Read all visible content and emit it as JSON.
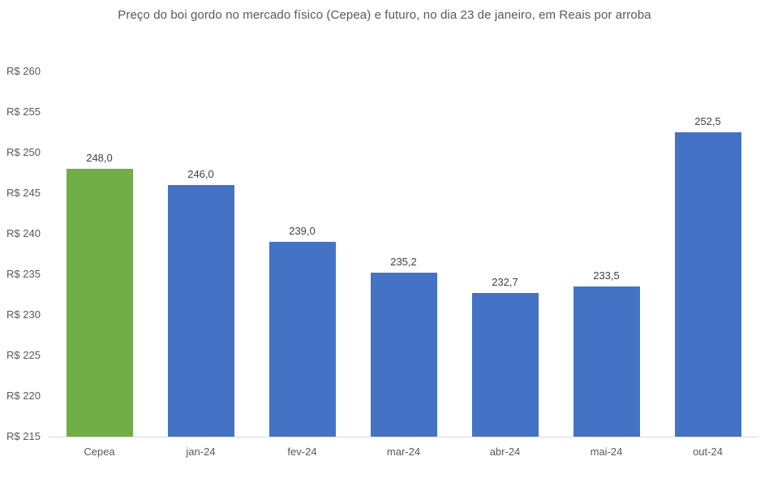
{
  "chart_data": {
    "type": "bar",
    "title": "Preço do boi gordo no mercado físico (Cepea) e futuro, no dia 23 de janeiro, em Reais por arroba",
    "categories": [
      "Cepea",
      "jan-24",
      "fev-24",
      "mar-24",
      "abr-24",
      "mai-24",
      "out-24"
    ],
    "values": [
      248.0,
      246.0,
      239.0,
      235.2,
      232.7,
      233.5,
      252.5
    ],
    "value_labels": [
      "248,0",
      "246,0",
      "239,0",
      "235,2",
      "232,7",
      "233,5",
      "252,5"
    ],
    "bar_colors": [
      "#70ad47",
      "#4472c4",
      "#4472c4",
      "#4472c4",
      "#4472c4",
      "#4472c4",
      "#4472c4"
    ],
    "xlabel": "",
    "ylabel": "",
    "ylim": [
      215,
      260
    ],
    "ytick_step": 5,
    "ytick_labels": [
      "R$ 215",
      "R$ 220",
      "R$ 225",
      "R$ 230",
      "R$ 235",
      "R$ 240",
      "R$ 245",
      "R$ 250",
      "R$ 255",
      "R$ 260"
    ],
    "grid": false,
    "legend_position": "none",
    "data_labels": true
  },
  "colors": {
    "cepea_bar": "#70ad47",
    "futures_bar": "#4472c4",
    "axis_text": "#595959",
    "title_text": "#595959",
    "value_label_text": "#404040",
    "axis_line": "#d9d9d9",
    "background": "#ffffff"
  }
}
